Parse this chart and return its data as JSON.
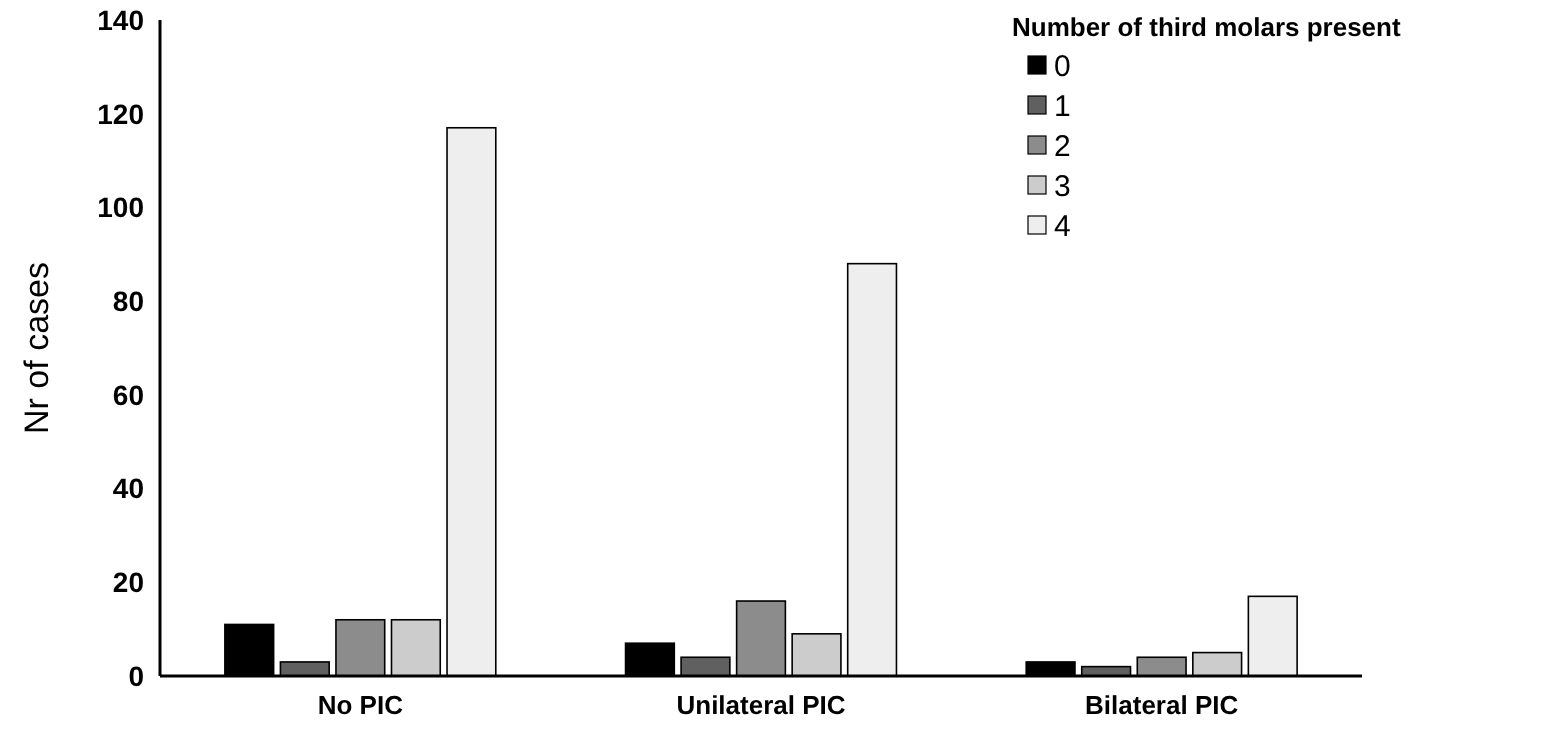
{
  "chart_data": {
    "type": "bar",
    "ylabel": "Nr of cases",
    "legend_title": "Number of third molars present",
    "categories": [
      "No PIC",
      "Unilateral PIC",
      "Bilateral PIC"
    ],
    "series": [
      {
        "name": "0",
        "color": "#000000",
        "values": [
          11,
          7,
          3
        ]
      },
      {
        "name": "1",
        "color": "#606060",
        "values": [
          3,
          4,
          2
        ]
      },
      {
        "name": "2",
        "color": "#8c8c8c",
        "values": [
          12,
          16,
          4
        ]
      },
      {
        "name": "3",
        "color": "#cccccc",
        "values": [
          12,
          9,
          5
        ]
      },
      {
        "name": "4",
        "color": "#eeeeee",
        "values": [
          117,
          88,
          17
        ]
      }
    ],
    "ylim": [
      0,
      140
    ],
    "yticks": [
      0,
      20,
      40,
      60,
      80,
      100,
      120,
      140
    ],
    "grid": false,
    "legend": "top right"
  }
}
